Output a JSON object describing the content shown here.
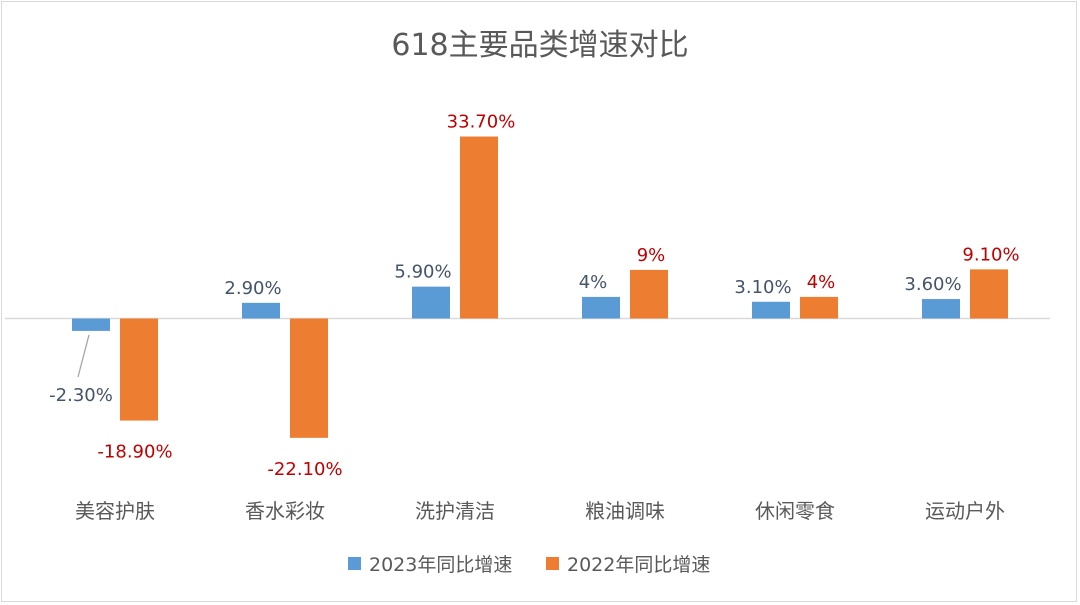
{
  "chart_data": {
    "type": "bar",
    "title": "618主要品类增速对比",
    "categories": [
      "美容护肤",
      "香水彩妆",
      "洗护清洁",
      "粮油调味",
      "休闲零食",
      "运动户外"
    ],
    "series": [
      {
        "name": "2023年同比增速",
        "color": "#5b9bd5",
        "label_color": "#44546a",
        "values": [
          -2.3,
          2.9,
          5.9,
          4,
          3.1,
          3.6
        ],
        "labels": [
          "-2.30%",
          "2.90%",
          "5.90%",
          "4%",
          "3.10%",
          "3.60%"
        ]
      },
      {
        "name": "2022年同比增速",
        "color": "#ed7d31",
        "label_color": "#c00000",
        "values": [
          -18.9,
          -22.1,
          33.7,
          9,
          4,
          9.1
        ],
        "labels": [
          "-18.90%",
          "-22.10%",
          "33.70%",
          "9%",
          "4%",
          "9.10%"
        ]
      }
    ],
    "xlabel": "",
    "ylabel": "",
    "ylim": [
      -25,
      40
    ],
    "grid": false,
    "legend": "bottom"
  }
}
